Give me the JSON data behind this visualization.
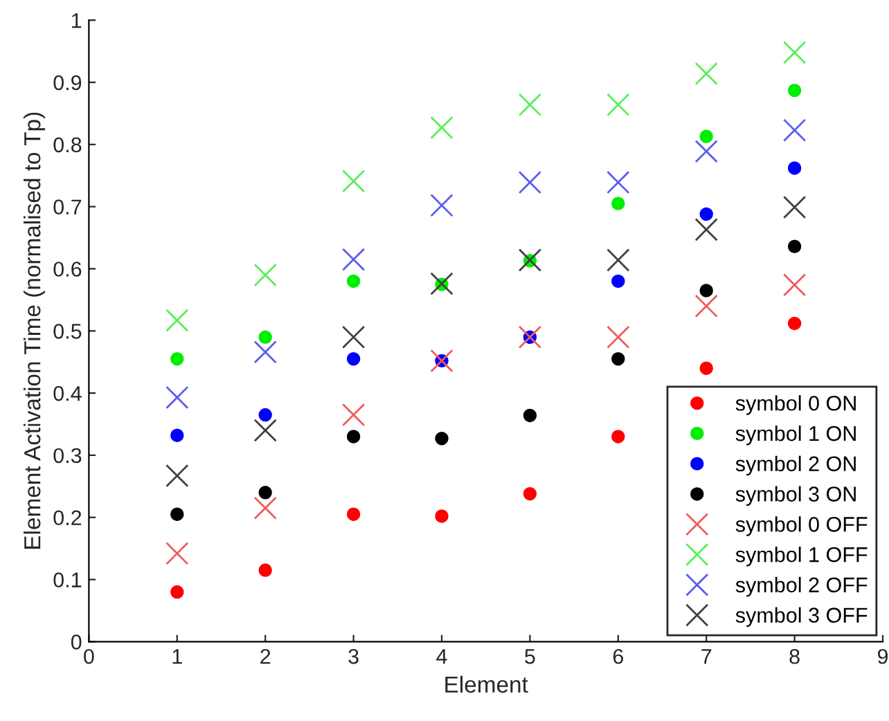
{
  "chart_data": {
    "type": "scatter",
    "xlabel": "Element",
    "ylabel": "Element Activation Time (normalised to Tp)",
    "x": [
      1,
      2,
      3,
      4,
      5,
      6,
      7,
      8
    ],
    "xlim": [
      0,
      9
    ],
    "xticks": [
      0,
      1,
      2,
      3,
      4,
      5,
      6,
      7,
      8,
      9
    ],
    "ylim": [
      0,
      1
    ],
    "yticks": [
      0,
      0.1,
      0.2,
      0.3,
      0.4,
      0.5,
      0.6,
      0.7,
      0.8,
      0.9,
      1
    ],
    "grid": false,
    "legend": "bottom right",
    "series": [
      {
        "name": "symbol 0 ON",
        "color": "#ff0000",
        "marker": "circle",
        "values": [
          0.08,
          0.115,
          0.205,
          0.202,
          0.238,
          0.33,
          0.44,
          0.512
        ]
      },
      {
        "name": "symbol 1 ON",
        "color": "#00ee00",
        "marker": "circle",
        "values": [
          0.455,
          0.49,
          0.58,
          0.575,
          0.613,
          0.705,
          0.813,
          0.887
        ]
      },
      {
        "name": "symbol 2 ON",
        "color": "#0000ff",
        "marker": "circle",
        "values": [
          0.332,
          0.365,
          0.455,
          0.452,
          0.49,
          0.58,
          0.688,
          0.762
        ]
      },
      {
        "name": "symbol 3 ON",
        "color": "#000000",
        "marker": "circle",
        "values": [
          0.205,
          0.24,
          0.33,
          0.327,
          0.364,
          0.455,
          0.565,
          0.636
        ]
      },
      {
        "name": "symbol 0 OFF",
        "color": "#f05a5a",
        "marker": "cross",
        "values": [
          0.142,
          0.215,
          0.365,
          0.452,
          0.49,
          0.49,
          0.54,
          0.574
        ]
      },
      {
        "name": "symbol 1 OFF",
        "color": "#5aee5a",
        "marker": "cross",
        "values": [
          0.517,
          0.59,
          0.741,
          0.827,
          0.864,
          0.864,
          0.914,
          0.948
        ]
      },
      {
        "name": "symbol 2 OFF",
        "color": "#5a5af0",
        "marker": "cross",
        "values": [
          0.393,
          0.466,
          0.615,
          0.702,
          0.739,
          0.739,
          0.789,
          0.823
        ]
      },
      {
        "name": "symbol 3 OFF",
        "color": "#404040",
        "marker": "cross",
        "values": [
          0.267,
          0.34,
          0.49,
          0.576,
          0.614,
          0.614,
          0.663,
          0.699
        ]
      }
    ]
  }
}
